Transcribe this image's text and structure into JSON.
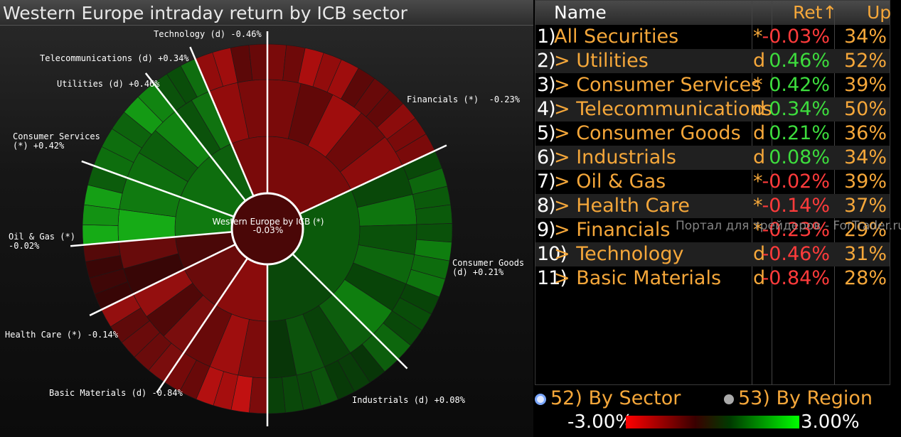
{
  "chart": {
    "title": "Western Europe intraday return by ICB sector",
    "center_label": "Western Europe by ICB (*)",
    "center_value": "-0.03%",
    "sectors": [
      {
        "label": "Financials (*)  -0.23%",
        "color": "#7a0a0a"
      },
      {
        "label": "Consumer Goods\n(d) +0.21%",
        "color": "#0b5a0b"
      },
      {
        "label": "Industrials (d) +0.08%",
        "color": "#0a480a"
      },
      {
        "label": "Basic Materials (d) -0.84%",
        "color": "#8a0c0c"
      },
      {
        "label": "Health Care (*) -0.14%",
        "color": "#6a0b0b"
      },
      {
        "label": "Oil & Gas (*)\n-0.02%",
        "color": "#4a0808"
      },
      {
        "label": "Consumer Services\n(*) +0.42%",
        "color": "#107a10"
      },
      {
        "label": "Utilities (d) +0.46%",
        "color": "#0e6e0e"
      },
      {
        "label": "Telecommunications (d) +0.34%",
        "color": "#0d600d"
      },
      {
        "label": "Technology (d) -0.46%",
        "color": "#7a0a0a"
      }
    ]
  },
  "table": {
    "col_name": "Name",
    "col_ret": "Ret↑",
    "col_up": "Up",
    "rows": [
      {
        "num": "1)",
        "name": "All Securities",
        "flag": "*",
        "ret": "-0.03%",
        "up": "34%",
        "sign": "neg"
      },
      {
        "num": "2)",
        "name": "> Utilities",
        "flag": "d",
        "ret": "0.46%",
        "up": "52%",
        "sign": "pos"
      },
      {
        "num": "3)",
        "name": "> Consumer Services",
        "flag": "*",
        "ret": "0.42%",
        "up": "39%",
        "sign": "pos"
      },
      {
        "num": "4)",
        "name": "> Telecommunications",
        "flag": "d",
        "ret": "0.34%",
        "up": "50%",
        "sign": "pos"
      },
      {
        "num": "5)",
        "name": "> Consumer Goods",
        "flag": "d",
        "ret": "0.21%",
        "up": "36%",
        "sign": "pos"
      },
      {
        "num": "6)",
        "name": "> Industrials",
        "flag": "d",
        "ret": "0.08%",
        "up": "34%",
        "sign": "pos"
      },
      {
        "num": "7)",
        "name": "> Oil & Gas",
        "flag": "*",
        "ret": "-0.02%",
        "up": "39%",
        "sign": "neg"
      },
      {
        "num": "8)",
        "name": "> Health Care",
        "flag": "*",
        "ret": "-0.14%",
        "up": "37%",
        "sign": "neg"
      },
      {
        "num": "9)",
        "name": "> Financials",
        "flag": "*",
        "ret": "-0.23%",
        "up": "29%",
        "sign": "neg"
      },
      {
        "num": "10)",
        "name": "> Technology",
        "flag": "d",
        "ret": "-0.46%",
        "up": "31%",
        "sign": "neg"
      },
      {
        "num": "11)",
        "name": "> Basic Materials",
        "flag": "d",
        "ret": "-0.84%",
        "up": "28%",
        "sign": "neg"
      }
    ]
  },
  "watermark": "Портал для трейдеров - ForTrader.ru",
  "options": {
    "by_sector": "52)  By Sector",
    "by_region": "53)  By Region"
  },
  "legend": {
    "min": "-3.00%",
    "max": "3.00%"
  }
}
